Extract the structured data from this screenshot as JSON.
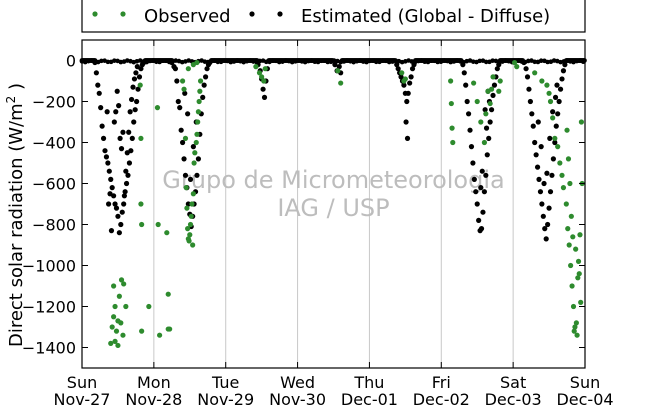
{
  "chart_data": {
    "type": "scatter",
    "ylabel_main": "Direct solar radiation (W/m",
    "ylabel_sup": "2",
    "ylabel_end": " )",
    "ylim": [
      -1500,
      100
    ],
    "yticks": [
      0,
      -200,
      -400,
      -600,
      -800,
      -1000,
      -1200,
      -1400
    ],
    "xlim": [
      0,
      7
    ],
    "xticks": [
      {
        "x": 0,
        "day": "Sun",
        "date": "Nov-27"
      },
      {
        "x": 1,
        "day": "Mon",
        "date": "Nov-28"
      },
      {
        "x": 2,
        "day": "Tue",
        "date": "Nov-29"
      },
      {
        "x": 3,
        "day": "Wed",
        "date": "Nov-30"
      },
      {
        "x": 4,
        "day": "Thu",
        "date": "Dec-01"
      },
      {
        "x": 5,
        "day": "Fri",
        "date": "Dec-02"
      },
      {
        "x": 6,
        "day": "Sat",
        "date": "Dec-03"
      },
      {
        "x": 7,
        "day": "Sun",
        "date": "Dec-04"
      }
    ],
    "grid": "vertical",
    "legend_position": "top",
    "watermark": [
      "Grupo de Micrometeorologia",
      "IAG / USP"
    ],
    "series": [
      {
        "name": "Observed",
        "color": "#2e8b2e",
        "points": [
          [
            0.4,
            -1380
          ],
          [
            0.42,
            -1300
          ],
          [
            0.44,
            -1250
          ],
          [
            0.46,
            -1200
          ],
          [
            0.48,
            -1320
          ],
          [
            0.5,
            -1270
          ],
          [
            0.52,
            -1150
          ],
          [
            0.55,
            -1070
          ],
          [
            0.58,
            -1090
          ],
          [
            0.61,
            -1200
          ],
          [
            0.44,
            -1100
          ],
          [
            0.46,
            -1370
          ],
          [
            0.5,
            -1390
          ],
          [
            0.54,
            -1280
          ],
          [
            0.57,
            -1340
          ],
          [
            0.81,
            -120
          ],
          [
            0.82,
            -380
          ],
          [
            0.82,
            -700
          ],
          [
            0.83,
            -800
          ],
          [
            0.83,
            -1320
          ],
          [
            0.93,
            -1200
          ],
          [
            1.05,
            -230
          ],
          [
            1.06,
            -800
          ],
          [
            1.08,
            -1340
          ],
          [
            1.18,
            -840
          ],
          [
            1.2,
            -1310
          ],
          [
            1.2,
            -1140
          ],
          [
            1.22,
            -1310
          ],
          [
            1.4,
            -100
          ],
          [
            1.42,
            -140
          ],
          [
            1.44,
            -380
          ],
          [
            1.45,
            -620
          ],
          [
            1.46,
            -720
          ],
          [
            1.47,
            -820
          ],
          [
            1.48,
            -870
          ],
          [
            1.49,
            -880
          ],
          [
            1.5,
            -850
          ],
          [
            1.51,
            -800
          ],
          [
            1.52,
            -760
          ],
          [
            1.53,
            -700
          ],
          [
            1.54,
            -900
          ],
          [
            1.55,
            -650
          ],
          [
            1.56,
            -500
          ],
          [
            1.57,
            -450
          ],
          [
            1.59,
            -400
          ],
          [
            1.6,
            -360
          ],
          [
            1.61,
            -300
          ],
          [
            1.62,
            -250
          ],
          [
            1.63,
            -200
          ],
          [
            1.64,
            -150
          ],
          [
            1.65,
            -100
          ],
          [
            1.6,
            -10
          ],
          [
            1.55,
            -20
          ],
          [
            1.48,
            -40
          ],
          [
            2.42,
            -30
          ],
          [
            2.47,
            -60
          ],
          [
            2.5,
            -80
          ],
          [
            2.53,
            -100
          ],
          [
            2.55,
            -40
          ],
          [
            3.56,
            -50
          ],
          [
            3.6,
            -110
          ],
          [
            4.45,
            -60
          ],
          [
            4.48,
            -100
          ],
          [
            4.5,
            -90
          ],
          [
            5.13,
            -100
          ],
          [
            5.14,
            -210
          ],
          [
            5.15,
            -330
          ],
          [
            5.16,
            -400
          ],
          [
            5.45,
            -110
          ],
          [
            5.5,
            -200
          ],
          [
            5.55,
            -300
          ],
          [
            5.6,
            -400
          ],
          [
            5.62,
            -260
          ],
          [
            5.65,
            -150
          ],
          [
            5.68,
            -210
          ],
          [
            5.7,
            -140
          ],
          [
            5.72,
            -80
          ],
          [
            5.8,
            -150
          ],
          [
            5.82,
            -100
          ],
          [
            6.02,
            -10
          ],
          [
            6.05,
            -30
          ],
          [
            6.3,
            -60
          ],
          [
            6.4,
            -100
          ],
          [
            6.47,
            -120
          ],
          [
            6.5,
            -160
          ],
          [
            6.52,
            -200
          ],
          [
            6.55,
            -280
          ],
          [
            6.58,
            -380
          ],
          [
            6.62,
            -420
          ],
          [
            6.65,
            -500
          ],
          [
            6.68,
            -560
          ],
          [
            6.7,
            -620
          ],
          [
            6.74,
            -700
          ],
          [
            6.76,
            -820
          ],
          [
            6.78,
            -900
          ],
          [
            6.8,
            -1000
          ],
          [
            6.82,
            -1100
          ],
          [
            6.84,
            -1200
          ],
          [
            6.86,
            -1300
          ],
          [
            6.88,
            -1280
          ],
          [
            6.9,
            -1060
          ],
          [
            6.91,
            -980
          ],
          [
            6.89,
            -1340
          ],
          [
            6.85,
            -1320
          ],
          [
            6.87,
            -920
          ],
          [
            6.83,
            -860
          ],
          [
            6.81,
            -760
          ],
          [
            6.79,
            -600
          ],
          [
            6.77,
            -480
          ],
          [
            6.75,
            -340
          ],
          [
            6.95,
            -300
          ],
          [
            6.92,
            -1040
          ],
          [
            6.94,
            -1180
          ],
          [
            6.96,
            -600
          ],
          [
            6.93,
            -850
          ]
        ]
      },
      {
        "name": "Estimated (Global - Diffuse)",
        "color": "#000000",
        "points": [
          [
            0.18,
            -10
          ],
          [
            0.2,
            -60
          ],
          [
            0.22,
            -120
          ],
          [
            0.24,
            -160
          ],
          [
            0.26,
            -230
          ],
          [
            0.28,
            -320
          ],
          [
            0.3,
            -380
          ],
          [
            0.32,
            -440
          ],
          [
            0.34,
            -470
          ],
          [
            0.36,
            -500
          ],
          [
            0.38,
            -540
          ],
          [
            0.4,
            -580
          ],
          [
            0.42,
            -620
          ],
          [
            0.44,
            -660
          ],
          [
            0.46,
            -700
          ],
          [
            0.48,
            -720
          ],
          [
            0.5,
            -760
          ],
          [
            0.52,
            -840
          ],
          [
            0.54,
            -800
          ],
          [
            0.56,
            -740
          ],
          [
            0.58,
            -700
          ],
          [
            0.6,
            -640
          ],
          [
            0.62,
            -600
          ],
          [
            0.64,
            -560
          ],
          [
            0.66,
            -500
          ],
          [
            0.68,
            -440
          ],
          [
            0.7,
            -380
          ],
          [
            0.72,
            -300
          ],
          [
            0.74,
            -240
          ],
          [
            0.76,
            -200
          ],
          [
            0.78,
            -140
          ],
          [
            0.8,
            -80
          ],
          [
            0.82,
            -40
          ],
          [
            0.84,
            -20
          ],
          [
            0.86,
            -10
          ],
          [
            0.35,
            -250
          ],
          [
            0.37,
            -700
          ],
          [
            0.39,
            -650
          ],
          [
            0.41,
            -830
          ],
          [
            0.45,
            -300
          ],
          [
            0.47,
            -250
          ],
          [
            0.49,
            -150
          ],
          [
            0.51,
            -220
          ],
          [
            0.53,
            -380
          ],
          [
            0.55,
            -430
          ],
          [
            0.57,
            -350
          ],
          [
            0.59,
            -660
          ],
          [
            0.61,
            -540
          ],
          [
            0.63,
            -450
          ],
          [
            0.65,
            -350
          ],
          [
            0.67,
            -250
          ],
          [
            0.69,
            -190
          ],
          [
            0.71,
            -130
          ],
          [
            0.73,
            -90
          ],
          [
            0.75,
            -60
          ],
          [
            0.77,
            -30
          ],
          [
            1.25,
            -10
          ],
          [
            1.28,
            -30
          ],
          [
            1.3,
            -40
          ],
          [
            1.32,
            -100
          ],
          [
            1.34,
            -200
          ],
          [
            1.36,
            -230
          ],
          [
            1.38,
            -340
          ],
          [
            1.4,
            -400
          ],
          [
            1.42,
            -480
          ],
          [
            1.44,
            -560
          ],
          [
            1.46,
            -620
          ],
          [
            1.48,
            -700
          ],
          [
            1.5,
            -750
          ],
          [
            1.52,
            -810
          ],
          [
            1.54,
            -760
          ],
          [
            1.56,
            -700
          ],
          [
            1.58,
            -640
          ],
          [
            1.6,
            -560
          ],
          [
            1.62,
            -480
          ],
          [
            1.64,
            -360
          ],
          [
            1.66,
            -260
          ],
          [
            1.68,
            -180
          ],
          [
            1.7,
            -120
          ],
          [
            1.72,
            -80
          ],
          [
            1.74,
            -40
          ],
          [
            1.76,
            -20
          ],
          [
            1.78,
            -10
          ],
          [
            1.43,
            -160
          ],
          [
            1.47,
            -260
          ],
          [
            1.51,
            -580
          ],
          [
            1.55,
            -420
          ],
          [
            1.59,
            -300
          ],
          [
            2.45,
            -20
          ],
          [
            2.48,
            -50
          ],
          [
            2.5,
            -90
          ],
          [
            2.52,
            -140
          ],
          [
            2.54,
            -180
          ],
          [
            2.56,
            -100
          ],
          [
            2.58,
            -40
          ],
          [
            3.52,
            -20
          ],
          [
            3.55,
            -50
          ],
          [
            3.58,
            -30
          ],
          [
            3.6,
            -60
          ],
          [
            4.38,
            -20
          ],
          [
            4.4,
            -40
          ],
          [
            4.42,
            -60
          ],
          [
            4.44,
            -80
          ],
          [
            4.46,
            -100
          ],
          [
            4.48,
            -120
          ],
          [
            4.5,
            -160
          ],
          [
            4.52,
            -200
          ],
          [
            4.54,
            -160
          ],
          [
            4.56,
            -110
          ],
          [
            4.58,
            -80
          ],
          [
            4.6,
            -40
          ],
          [
            4.62,
            -20
          ],
          [
            4.53,
            -380
          ],
          [
            4.51,
            -300
          ],
          [
            5.3,
            -20
          ],
          [
            5.32,
            -60
          ],
          [
            5.34,
            -120
          ],
          [
            5.36,
            -200
          ],
          [
            5.38,
            -260
          ],
          [
            5.4,
            -340
          ],
          [
            5.42,
            -420
          ],
          [
            5.44,
            -500
          ],
          [
            5.46,
            -580
          ],
          [
            5.48,
            -640
          ],
          [
            5.5,
            -700
          ],
          [
            5.52,
            -780
          ],
          [
            5.54,
            -830
          ],
          [
            5.56,
            -820
          ],
          [
            5.58,
            -740
          ],
          [
            5.6,
            -640
          ],
          [
            5.62,
            -560
          ],
          [
            5.64,
            -460
          ],
          [
            5.66,
            -380
          ],
          [
            5.68,
            -300
          ],
          [
            5.7,
            -240
          ],
          [
            5.72,
            -170
          ],
          [
            5.74,
            -120
          ],
          [
            5.76,
            -80
          ],
          [
            5.78,
            -40
          ],
          [
            5.8,
            -20
          ],
          [
            5.61,
            -240
          ],
          [
            5.63,
            -330
          ],
          [
            5.65,
            -150
          ],
          [
            5.67,
            -200
          ],
          [
            5.55,
            -620
          ],
          [
            5.57,
            -540
          ],
          [
            6.15,
            -10
          ],
          [
            6.18,
            -40
          ],
          [
            6.2,
            -80
          ],
          [
            6.22,
            -140
          ],
          [
            6.24,
            -200
          ],
          [
            6.26,
            -260
          ],
          [
            6.28,
            -320
          ],
          [
            6.3,
            -400
          ],
          [
            6.32,
            -460
          ],
          [
            6.34,
            -520
          ],
          [
            6.36,
            -580
          ],
          [
            6.38,
            -640
          ],
          [
            6.4,
            -700
          ],
          [
            6.42,
            -760
          ],
          [
            6.44,
            -820
          ],
          [
            6.46,
            -870
          ],
          [
            6.48,
            -800
          ],
          [
            6.5,
            -720
          ],
          [
            6.52,
            -640
          ],
          [
            6.54,
            -560
          ],
          [
            6.56,
            -480
          ],
          [
            6.58,
            -400
          ],
          [
            6.6,
            -320
          ],
          [
            6.62,
            -260
          ],
          [
            6.64,
            -200
          ],
          [
            6.66,
            -140
          ],
          [
            6.68,
            -90
          ],
          [
            6.7,
            -50
          ],
          [
            6.72,
            -20
          ],
          [
            6.35,
            -300
          ],
          [
            6.39,
            -420
          ],
          [
            6.43,
            -600
          ],
          [
            6.47,
            -550
          ],
          [
            6.51,
            -380
          ],
          [
            6.55,
            -250
          ],
          [
            6.59,
            -180
          ],
          [
            6.61,
            -120
          ]
        ],
        "baseline": [
          [
            0.0,
            0.19
          ],
          [
            0.88,
            1.26
          ],
          [
            1.8,
            2.44
          ],
          [
            2.6,
            3.5
          ],
          [
            3.62,
            4.36
          ],
          [
            4.64,
            5.28
          ],
          [
            5.82,
            6.14
          ],
          [
            6.74,
            7.0
          ]
        ]
      }
    ]
  }
}
